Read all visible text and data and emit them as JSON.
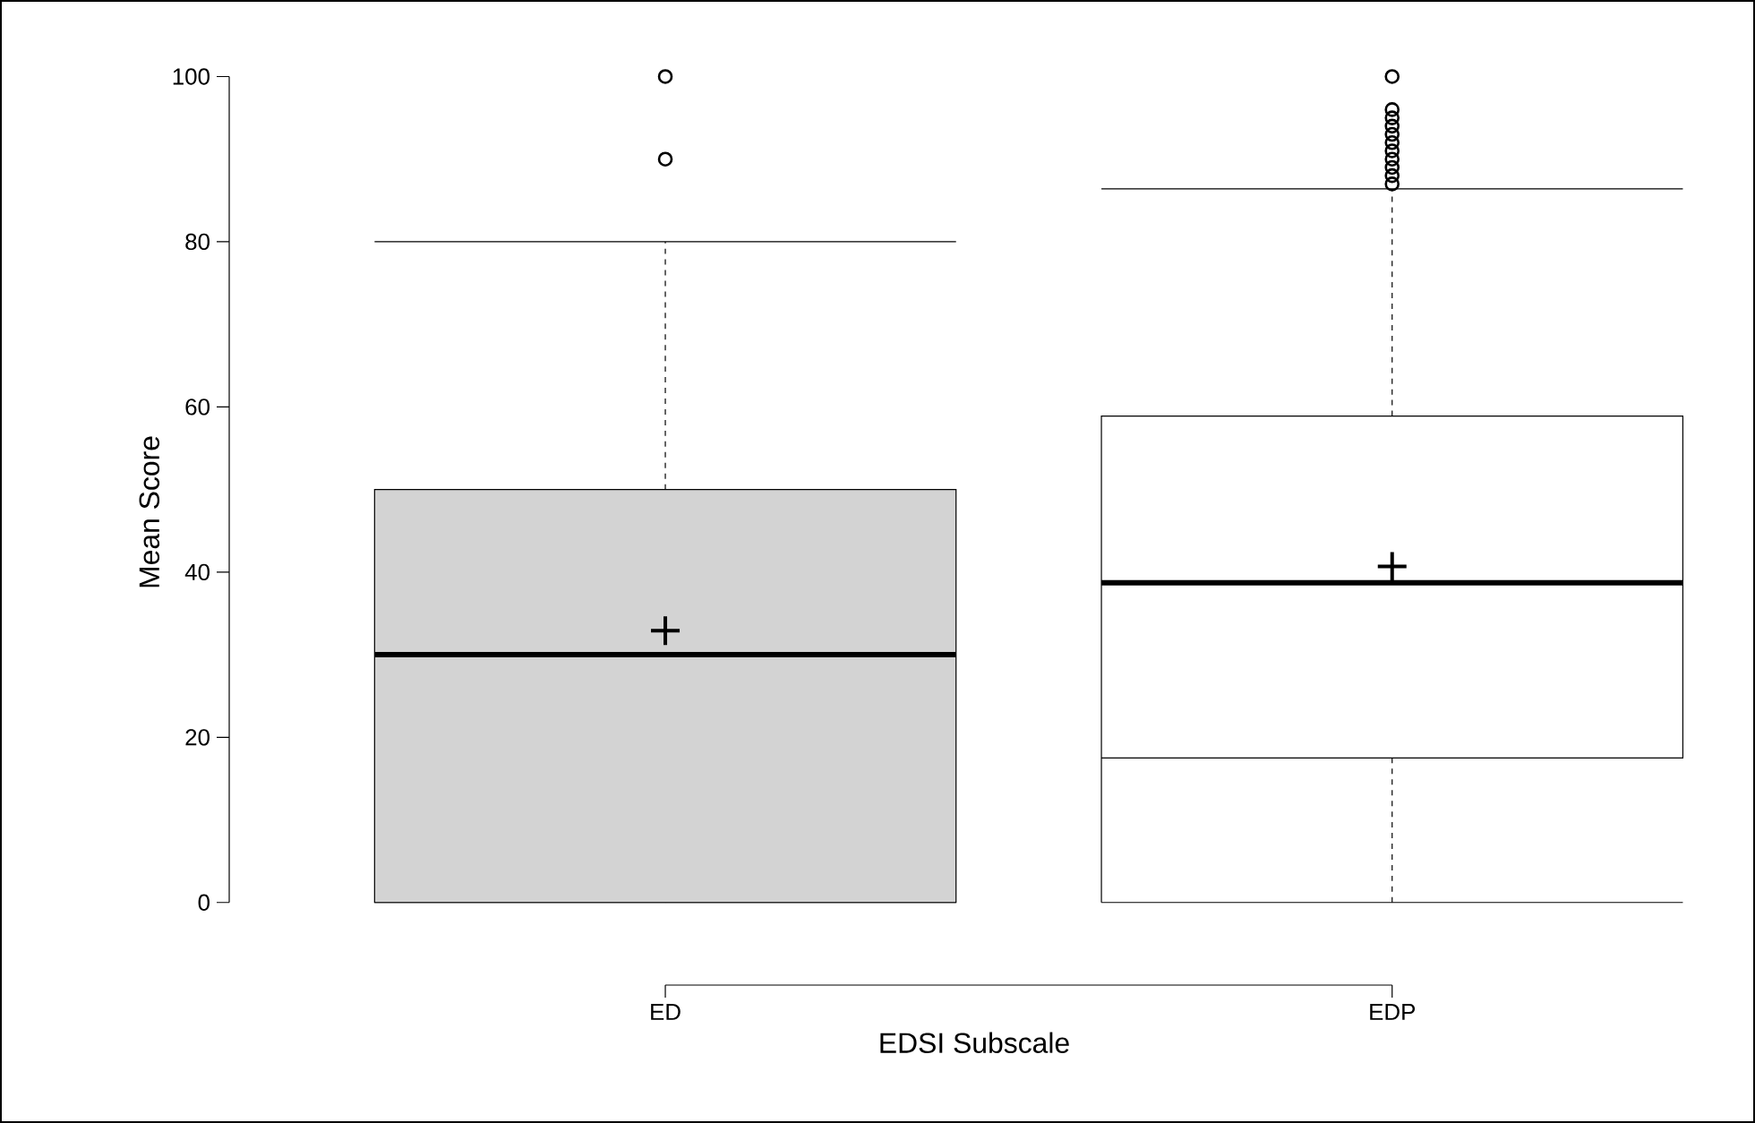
{
  "chart_data": {
    "type": "box",
    "xlabel": "EDSI Subscale",
    "ylabel": "Mean Score",
    "categories": [
      "ED",
      "EDP"
    ],
    "colors": [
      "#d3d3d3",
      "#ffffff"
    ],
    "ylim": [
      0,
      100
    ],
    "yticks": [
      0,
      20,
      40,
      60,
      80,
      100
    ],
    "boxes": [
      {
        "low": 0,
        "q1": 0,
        "median": 30,
        "q3": 50,
        "high": 80,
        "mean": 32.9,
        "outliers": [
          90,
          100
        ]
      },
      {
        "low": 0,
        "q1": 17.5,
        "median": 38.7,
        "q3": 58.9,
        "high": 86.4,
        "mean": 40.7,
        "outliers": [
          87,
          88,
          89,
          90,
          91,
          92,
          93,
          94,
          95,
          96,
          100
        ]
      }
    ]
  }
}
